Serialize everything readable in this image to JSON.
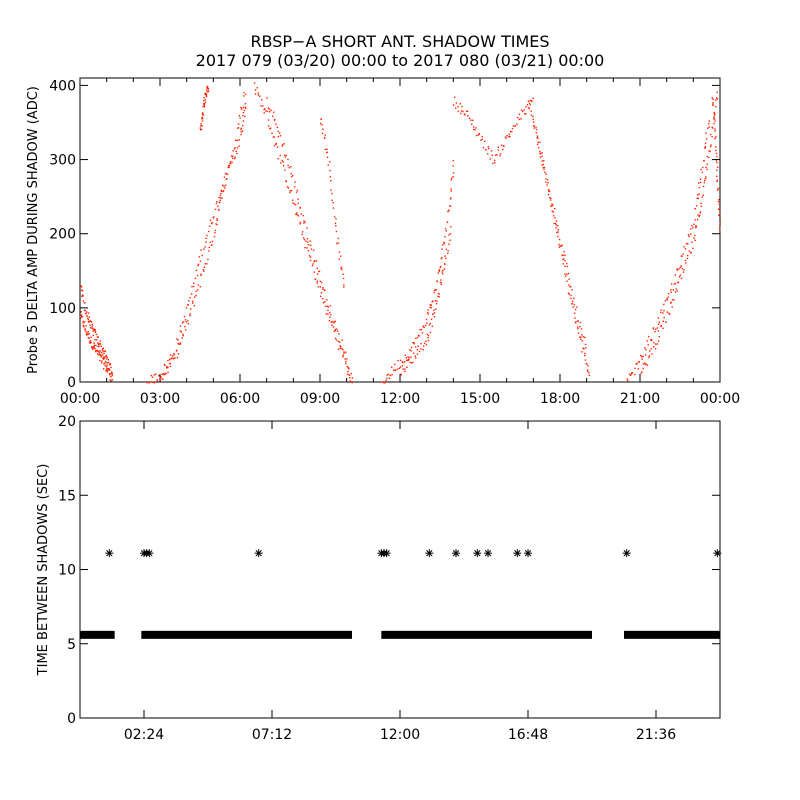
{
  "title_line1": "RBSP−A SHORT ANT. SHADOW TIMES",
  "title_line2": "2017 079 (03/20) 00:00 to 2017 080 (03/21) 00:00",
  "colors": {
    "points_top": "#ff2200",
    "points_bottom": "#000000",
    "axes": "#000000"
  },
  "chart_data": [
    {
      "type": "scatter",
      "title": "RBSP−A SHORT ANT. SHADOW TIMES",
      "ylabel": "Probe 5 DELTA AMP DURING SHADOW (ADC)",
      "xlabel": "",
      "xlim": [
        0,
        24
      ],
      "ylim": [
        0,
        410
      ],
      "x_unit": "hours",
      "xtick_values": [
        0,
        3,
        6,
        9,
        12,
        15,
        18,
        21,
        24
      ],
      "xtick_labels": [
        "00:00",
        "03:00",
        "06:00",
        "09:00",
        "12:00",
        "15:00",
        "18:00",
        "21:00",
        "00:00"
      ],
      "ytick_values": [
        0,
        100,
        200,
        300,
        400
      ],
      "ytick_labels": [
        "0",
        "100",
        "200",
        "300",
        "400"
      ],
      "color": "red",
      "series": [
        {
          "name": "descending_a",
          "x": [
            0.0,
            0.2,
            0.4,
            0.6,
            0.8,
            1.0,
            1.2
          ],
          "y": [
            90,
            70,
            55,
            42,
            30,
            18,
            5
          ]
        },
        {
          "name": "descending_a2",
          "x": [
            0.0,
            0.2,
            0.4,
            0.6,
            0.8,
            1.0,
            1.2
          ],
          "y": [
            130,
            95,
            75,
            60,
            45,
            30,
            10
          ]
        },
        {
          "name": "rising_1",
          "x": [
            2.5,
            3.0,
            3.5,
            4.0,
            4.5,
            5.0,
            5.5,
            6.0,
            6.2
          ],
          "y": [
            0,
            10,
            40,
            100,
            170,
            230,
            280,
            330,
            380
          ]
        },
        {
          "name": "rising_1b",
          "x": [
            3.0,
            3.5,
            4.0,
            4.5,
            5.0,
            5.3,
            5.8,
            6.2
          ],
          "y": [
            5,
            30,
            80,
            140,
            200,
            260,
            320,
            400
          ]
        },
        {
          "name": "burst_1",
          "x": [
            4.5,
            4.6,
            4.7,
            4.8
          ],
          "y": [
            340,
            370,
            390,
            400
          ]
        },
        {
          "name": "descending_1",
          "x": [
            6.5,
            7.0,
            7.5,
            8.0,
            8.5,
            9.0,
            9.5,
            10.0,
            10.2
          ],
          "y": [
            400,
            360,
            300,
            240,
            180,
            120,
            70,
            20,
            0
          ]
        },
        {
          "name": "descending_1b",
          "x": [
            7.0,
            7.5,
            8.0,
            8.5,
            9.0,
            9.5,
            10.0
          ],
          "y": [
            380,
            330,
            270,
            200,
            140,
            80,
            30
          ]
        },
        {
          "name": "descending_1c",
          "x": [
            9.0,
            9.3,
            9.6,
            9.9
          ],
          "y": [
            360,
            300,
            200,
            120
          ]
        },
        {
          "name": "rising_2",
          "x": [
            11.3,
            11.8,
            12.3,
            12.8,
            13.2,
            13.5,
            13.8,
            14.0
          ],
          "y": [
            0,
            20,
            40,
            70,
            110,
            160,
            230,
            300
          ]
        },
        {
          "name": "rising_2b",
          "x": [
            12.0,
            12.5,
            13.0,
            13.3,
            13.6,
            13.9
          ],
          "y": [
            15,
            35,
            60,
            100,
            150,
            210
          ]
        },
        {
          "name": "plateau_2",
          "x": [
            14.0,
            14.5,
            15.0,
            15.5,
            16.0,
            16.5,
            17.0
          ],
          "y": [
            380,
            360,
            330,
            300,
            330,
            360,
            380
          ]
        },
        {
          "name": "descending_2",
          "x": [
            16.8,
            17.2,
            17.6,
            18.0,
            18.4,
            18.8,
            19.1
          ],
          "y": [
            380,
            320,
            250,
            180,
            110,
            50,
            5
          ]
        },
        {
          "name": "descending_2b",
          "x": [
            17.0,
            17.5,
            18.0,
            18.5,
            19.0
          ],
          "y": [
            350,
            270,
            190,
            110,
            40
          ]
        },
        {
          "name": "rising_3",
          "x": [
            20.5,
            21.0,
            21.5,
            22.0,
            22.5,
            23.0,
            23.3,
            23.6
          ],
          "y": [
            0,
            30,
            70,
            110,
            160,
            220,
            290,
            360
          ]
        },
        {
          "name": "rising_3b",
          "x": [
            21.0,
            21.5,
            22.0,
            22.5,
            23.0,
            23.3,
            23.6,
            23.9
          ],
          "y": [
            10,
            50,
            90,
            140,
            190,
            250,
            320,
            400
          ]
        },
        {
          "name": "descending_3",
          "x": [
            23.7,
            23.8,
            23.9,
            24.0
          ],
          "y": [
            390,
            330,
            260,
            190
          ]
        }
      ]
    },
    {
      "type": "scatter",
      "ylabel": "TIME BETWEEN SHADOWS (SEC)",
      "xlabel": "",
      "xlim": [
        0,
        24
      ],
      "ylim": [
        0,
        20
      ],
      "x_unit": "hours",
      "xtick_values": [
        2.4,
        7.2,
        12.0,
        16.8,
        21.6
      ],
      "xtick_labels": [
        "02:24",
        "07:12",
        "12:00",
        "16:48",
        "21:36"
      ],
      "ytick_values": [
        0,
        5,
        10,
        15,
        20
      ],
      "ytick_labels": [
        "0",
        "5",
        "10",
        "15",
        "20"
      ],
      "marker": "*",
      "color": "black",
      "band_value": 5.6,
      "bands": [
        [
          0.0,
          1.3
        ],
        [
          2.3,
          10.2
        ],
        [
          11.3,
          19.2
        ],
        [
          20.4,
          24.0
        ]
      ],
      "points": {
        "x": [
          1.1,
          2.4,
          2.5,
          2.6,
          6.7,
          11.3,
          11.4,
          11.5,
          13.1,
          14.1,
          14.9,
          15.3,
          16.4,
          16.8,
          20.5,
          23.9
        ],
        "y": [
          11.1,
          11.1,
          11.1,
          11.1,
          11.1,
          11.1,
          11.1,
          11.1,
          11.1,
          11.1,
          11.1,
          11.1,
          11.1,
          11.1,
          11.1,
          11.1
        ]
      }
    }
  ]
}
